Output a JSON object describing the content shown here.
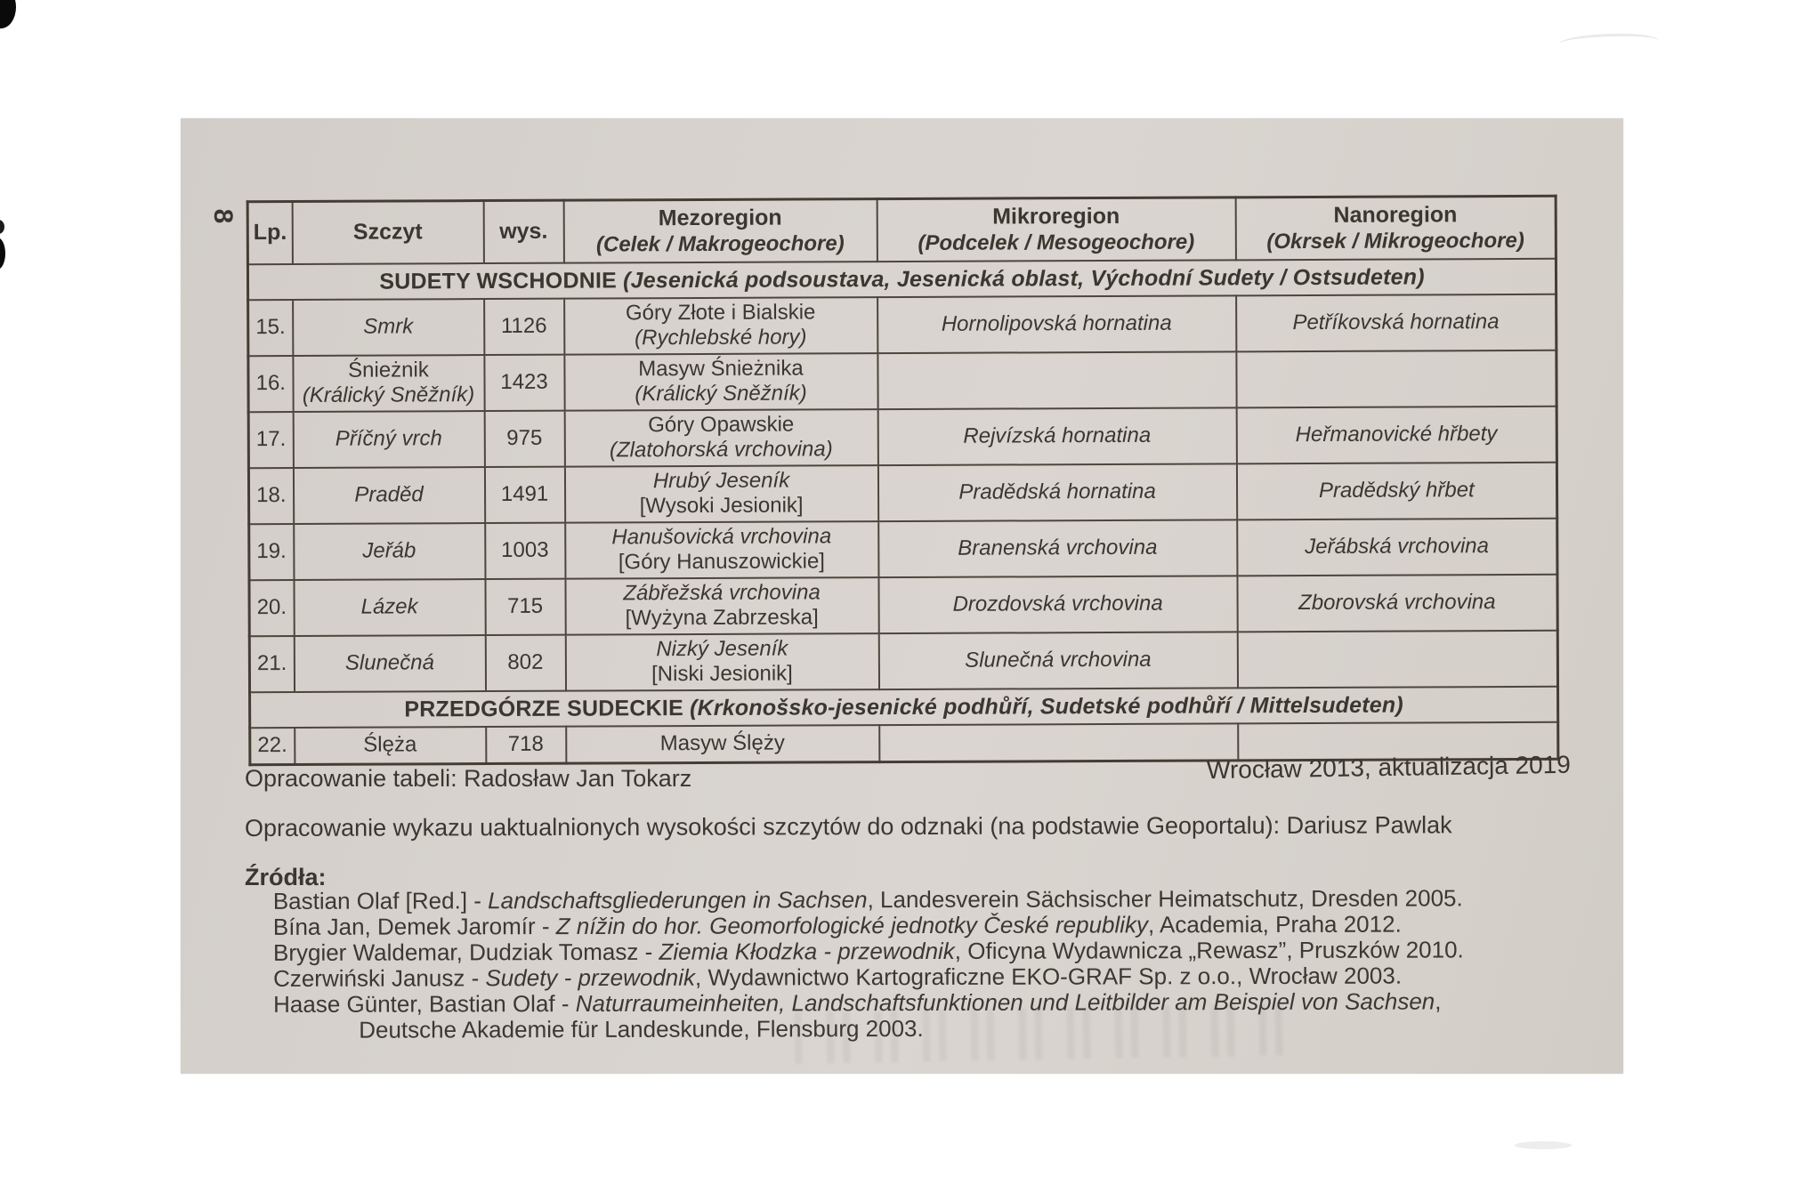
{
  "colors": {
    "page_bg": "#d6d1cb",
    "ink": "#3b372f",
    "line": "#4c463c"
  },
  "page": {
    "number": "8"
  },
  "table": {
    "columns": [
      {
        "label": "Lp.",
        "sub": ""
      },
      {
        "label": "Szczyt",
        "sub": ""
      },
      {
        "label": "wys.",
        "sub": ""
      },
      {
        "label": "Mezoregion",
        "sub": "(Celek / Makrogeochore)"
      },
      {
        "label": "Mikroregion",
        "sub": "(Podcelek / Mesogeochore)"
      },
      {
        "label": "Nanoregion",
        "sub": "(Okrsek / Mikrogeochore)"
      }
    ],
    "sections": [
      {
        "title_bold": "SUDETY WSCHODNIE",
        "title_italic": "(Jesenická podsoustava, Jesenická oblast, Východní Sudety / Ostsudeten)",
        "rows": [
          {
            "lp": "15.",
            "szczyt": [
              {
                "text": "Smrk",
                "italic": true
              }
            ],
            "wys": "1126",
            "mezoregion": [
              {
                "text": "Góry Złote i Bialskie",
                "italic": false
              },
              {
                "text": "(Rychlebské hory)",
                "italic": true
              }
            ],
            "mikroregion": [
              {
                "text": "Hornolipovská hornatina",
                "italic": true
              }
            ],
            "nanoregion": [
              {
                "text": "Petříkovská hornatina",
                "italic": true
              }
            ]
          },
          {
            "lp": "16.",
            "szczyt": [
              {
                "text": "Śnieżnik",
                "italic": false
              },
              {
                "text": "(Králický Sněžník)",
                "italic": true
              }
            ],
            "wys": "1423",
            "mezoregion": [
              {
                "text": "Masyw Śnieżnika",
                "italic": false
              },
              {
                "text": "(Králický Sněžník)",
                "italic": true
              }
            ],
            "mikroregion": [],
            "nanoregion": []
          },
          {
            "lp": "17.",
            "szczyt": [
              {
                "text": "Příčný vrch",
                "italic": true
              }
            ],
            "wys": "975",
            "mezoregion": [
              {
                "text": "Góry Opawskie",
                "italic": false
              },
              {
                "text": "(Zlatohorská vrchovina)",
                "italic": true
              }
            ],
            "mikroregion": [
              {
                "text": "Rejvízská hornatina",
                "italic": true
              }
            ],
            "nanoregion": [
              {
                "text": "Heřmanovické hřbety",
                "italic": true
              }
            ]
          },
          {
            "lp": "18.",
            "szczyt": [
              {
                "text": "Praděd",
                "italic": true
              }
            ],
            "wys": "1491",
            "mezoregion": [
              {
                "text": "Hrubý Jeseník",
                "italic": true
              },
              {
                "text": "[Wysoki Jesionik]",
                "italic": false
              }
            ],
            "mikroregion": [
              {
                "text": "Pradědská hornatina",
                "italic": true
              }
            ],
            "nanoregion": [
              {
                "text": "Pradědský hřbet",
                "italic": true
              }
            ]
          },
          {
            "lp": "19.",
            "szczyt": [
              {
                "text": "Jeřáb",
                "italic": true
              }
            ],
            "wys": "1003",
            "mezoregion": [
              {
                "text": "Hanušovická vrchovina",
                "italic": true
              },
              {
                "text": "[Góry Hanuszowickie]",
                "italic": false
              }
            ],
            "mikroregion": [
              {
                "text": "Branenská vrchovina",
                "italic": true
              }
            ],
            "nanoregion": [
              {
                "text": "Jeřábská vrchovina",
                "italic": true
              }
            ]
          },
          {
            "lp": "20.",
            "szczyt": [
              {
                "text": "Lázek",
                "italic": true
              }
            ],
            "wys": "715",
            "mezoregion": [
              {
                "text": "Zábřežská vrchovina",
                "italic": true
              },
              {
                "text": "[Wyżyna Zabrzeska]",
                "italic": false
              }
            ],
            "mikroregion": [
              {
                "text": "Drozdovská vrchovina",
                "italic": true
              }
            ],
            "nanoregion": [
              {
                "text": "Zborovská vrchovina",
                "italic": true
              }
            ]
          },
          {
            "lp": "21.",
            "szczyt": [
              {
                "text": "Slunečná",
                "italic": true
              }
            ],
            "wys": "802",
            "mezoregion": [
              {
                "text": "Nizký Jeseník",
                "italic": true
              },
              {
                "text": "[Niski Jesionik]",
                "italic": false
              }
            ],
            "mikroregion": [
              {
                "text": "Slunečná vrchovina",
                "italic": true
              }
            ],
            "nanoregion": []
          }
        ]
      },
      {
        "title_bold": "PRZEDGÓRZE SUDECKIE",
        "title_italic": "(Krkonošsko-jesenické podhůří, Sudetské podhůří / Mittelsudeten)",
        "rows": [
          {
            "lp": "22.",
            "szczyt": [
              {
                "text": "Ślęża",
                "italic": false
              }
            ],
            "wys": "718",
            "mezoregion": [
              {
                "text": "Masyw Ślęży",
                "italic": false
              }
            ],
            "mikroregion": [],
            "nanoregion": []
          }
        ]
      }
    ]
  },
  "footer": {
    "credit_left": "Opracowanie tabeli: Radosław Jan Tokarz",
    "credit_right": "Wrocław 2013, aktualizacja 2019",
    "credit_update": "Opracowanie wykazu uaktualnionych wysokości szczytów do odznaki (na podstawie Geoportalu): Dariusz Pawlak",
    "sources_label": "Źródła:",
    "sources": [
      {
        "segments": [
          {
            "text": "Bastian Olaf [Red.] - ",
            "italic": false
          },
          {
            "text": "Landschaftsgliederungen in Sachsen",
            "italic": true
          },
          {
            "text": ", Landesverein Sächsischer Heimatschutz, Dresden 2005.",
            "italic": false
          }
        ]
      },
      {
        "segments": [
          {
            "text": "Bína Jan, Demek Jaromír - ",
            "italic": false
          },
          {
            "text": "Z nížin do hor. Geomorfologické jednotky České republiky",
            "italic": true
          },
          {
            "text": ", Academia, Praha 2012.",
            "italic": false
          }
        ]
      },
      {
        "segments": [
          {
            "text": "Brygier Waldemar, Dudziak Tomasz - ",
            "italic": false
          },
          {
            "text": "Ziemia Kłodzka - przewodnik",
            "italic": true
          },
          {
            "text": ", Oficyna Wydawnicza „Rewasz”, Pruszków 2010.",
            "italic": false
          }
        ]
      },
      {
        "segments": [
          {
            "text": "Czerwiński Janusz - ",
            "italic": false
          },
          {
            "text": "Sudety - przewodnik",
            "italic": true
          },
          {
            "text": ", Wydawnictwo Kartograficzne EKO-GRAF Sp. z o.o., Wrocław 2003.",
            "italic": false
          }
        ]
      },
      {
        "segments": [
          {
            "text": "Haase Günter, Bastian Olaf - ",
            "italic": false
          },
          {
            "text": "Naturraumeinheiten, Landschaftsfunktionen und Leitbilder am Beispiel von Sachsen",
            "italic": true
          },
          {
            "text": ",",
            "italic": false
          }
        ],
        "continuation": "Deutsche Akademie für Landeskunde, Flensburg 2003."
      }
    ]
  }
}
